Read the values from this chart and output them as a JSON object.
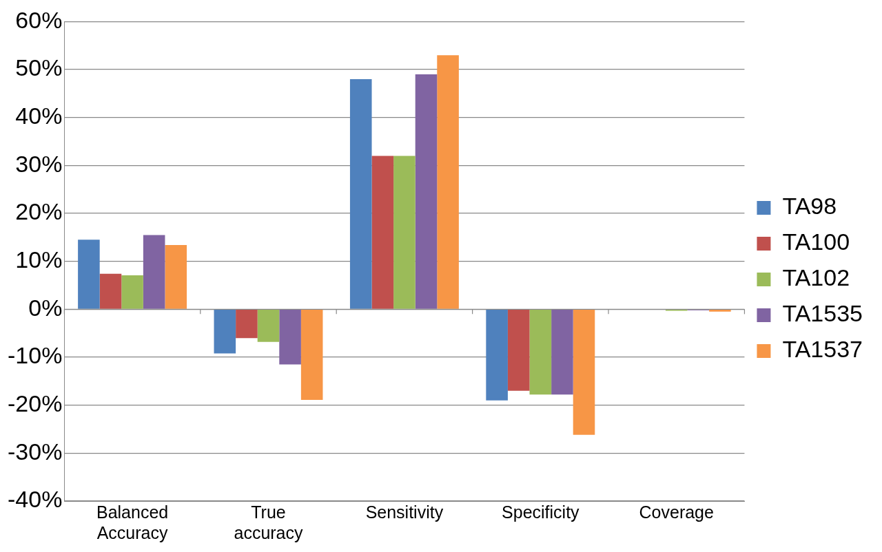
{
  "chart_data": {
    "type": "bar",
    "categories": [
      "Balanced Accuracy",
      "True accuracy",
      "Sensitivity",
      "Specificity",
      "Coverage"
    ],
    "series": [
      {
        "name": "TA98",
        "color": "#4f81bd",
        "values": [
          14.5,
          -9.2,
          48,
          -19,
          0
        ]
      },
      {
        "name": "TA100",
        "color": "#c0504d",
        "values": [
          7.4,
          -6,
          32,
          -17,
          0
        ]
      },
      {
        "name": "TA102",
        "color": "#9bbb59",
        "values": [
          7.1,
          -6.8,
          32,
          -17.8,
          -0.3
        ]
      },
      {
        "name": "TA1535",
        "color": "#8064a2",
        "values": [
          15.5,
          -11.5,
          49,
          -17.8,
          -0.2
        ]
      },
      {
        "name": "TA1537",
        "color": "#f79646",
        "values": [
          13.4,
          -18.9,
          53,
          -26.2,
          -0.5
        ]
      }
    ],
    "ylim": [
      -40,
      60
    ],
    "yticks": [
      {
        "value": -40,
        "label": "-40%"
      },
      {
        "value": -30,
        "label": "-30%"
      },
      {
        "value": -20,
        "label": "-20%"
      },
      {
        "value": -10,
        "label": "-10%"
      },
      {
        "value": 0,
        "label": "0%"
      },
      {
        "value": 10,
        "label": "10%"
      },
      {
        "value": 20,
        "label": "20%"
      },
      {
        "value": 30,
        "label": "30%"
      },
      {
        "value": 40,
        "label": "40%"
      },
      {
        "value": 50,
        "label": "50%"
      },
      {
        "value": 60,
        "label": "60%"
      }
    ],
    "grid": "y",
    "legend": "right"
  }
}
